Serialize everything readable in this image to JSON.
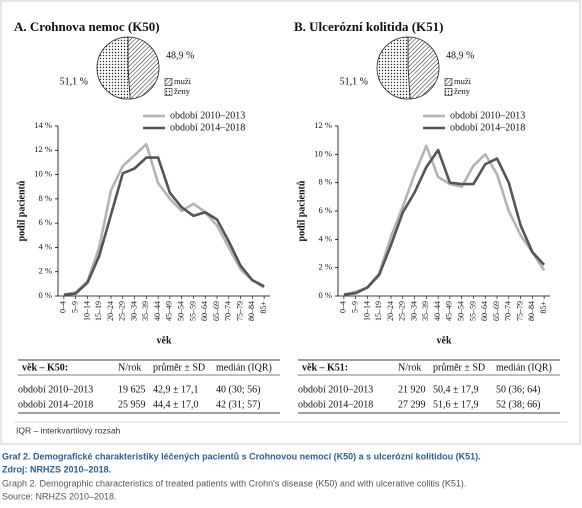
{
  "chart_data": [
    {
      "type": "pie",
      "title": "A. Crohnova nemoc (K50)",
      "categories": [
        "muži",
        "ženy"
      ],
      "values": [
        48.9,
        51.1
      ],
      "value_labels": [
        "48,9 %",
        "51,1 %"
      ],
      "fills": [
        "hatch",
        "dots"
      ]
    },
    {
      "type": "line",
      "categories": [
        "0–4",
        "5–9",
        "10–14",
        "15–19",
        "20–24",
        "25–29",
        "30–34",
        "35–39",
        "40–44",
        "45–49",
        "50–54",
        "55–59",
        "60–64",
        "65–69",
        "70–74",
        "75–79",
        "80–84",
        "85+"
      ],
      "series": [
        {
          "name": "období 2010–2013",
          "color": "#b3b3b3",
          "values": [
            0.1,
            0.3,
            1.2,
            4.0,
            8.7,
            10.7,
            11.6,
            12.5,
            9.3,
            8.0,
            7.0,
            7.6,
            6.9,
            5.8,
            4.0,
            2.2,
            1.3,
            0.7
          ]
        },
        {
          "name": "období 2014–2018",
          "color": "#555555",
          "values": [
            0.1,
            0.2,
            1.1,
            3.3,
            6.7,
            10.1,
            10.5,
            11.4,
            11.4,
            8.5,
            7.3,
            6.6,
            6.9,
            6.3,
            4.5,
            2.5,
            1.3,
            0.8
          ]
        }
      ],
      "ylim": [
        0,
        14
      ],
      "yticks": [
        {
          "value": 0,
          "label": "0 %"
        },
        {
          "value": 2,
          "label": "2 %"
        },
        {
          "value": 4,
          "label": "4 %"
        },
        {
          "value": 6,
          "label": "6 %"
        },
        {
          "value": 8,
          "label": "8 %"
        },
        {
          "value": 10,
          "label": "10 %"
        },
        {
          "value": 12,
          "label": "12 %"
        },
        {
          "value": 14,
          "label": "14 %"
        }
      ],
      "y_label": "podíl pacientů",
      "x_label": "věk"
    },
    {
      "type": "pie",
      "title": "B. Ulcerózní kolitida (K51)",
      "categories": [
        "muži",
        "ženy"
      ],
      "values": [
        48.9,
        51.1
      ],
      "value_labels": [
        "48,9 %",
        "51,1 %"
      ],
      "fills": [
        "hatch",
        "dots"
      ]
    },
    {
      "type": "line",
      "categories": [
        "0–4",
        "5–9",
        "10–14",
        "15–19",
        "20–24",
        "25–29",
        "30–34",
        "35–39",
        "40–44",
        "45–49",
        "50–54",
        "55–59",
        "60–64",
        "65–69",
        "70–74",
        "75–79",
        "80–84",
        "85+"
      ],
      "series": [
        {
          "name": "období 2010–2013",
          "color": "#b3b3b3",
          "values": [
            0.1,
            0.3,
            0.6,
            1.6,
            4.2,
            6.3,
            8.6,
            10.6,
            8.4,
            7.9,
            7.7,
            9.2,
            10.0,
            8.6,
            6.0,
            4.3,
            3.1,
            1.8
          ]
        },
        {
          "name": "období 2014–2018",
          "color": "#555555",
          "values": [
            0.1,
            0.2,
            0.6,
            1.5,
            3.6,
            5.9,
            7.3,
            9.1,
            10.3,
            8.0,
            7.9,
            7.9,
            9.3,
            9.7,
            8.0,
            5.0,
            3.1,
            2.2
          ]
        }
      ],
      "ylim": [
        0,
        12
      ],
      "yticks": [
        {
          "value": 0,
          "label": "0 %"
        },
        {
          "value": 2,
          "label": "2 %"
        },
        {
          "value": 4,
          "label": "4 %"
        },
        {
          "value": 6,
          "label": "6 %"
        },
        {
          "value": 8,
          "label": "8 %"
        },
        {
          "value": 10,
          "label": "10 %"
        },
        {
          "value": 12,
          "label": "12 %"
        }
      ],
      "y_label": "podíl pacientů",
      "x_label": "věk"
    }
  ],
  "tables": [
    {
      "header": [
        "věk – K50:",
        "N/rok",
        "průměr ± SD",
        "medián (IQR)"
      ],
      "rows": [
        [
          "období 2010–2013",
          "19 625",
          "42,9 ± 17,1",
          "40 (30; 56)"
        ],
        [
          "období 2014–2018",
          "25 959",
          "44,4 ± 17,0",
          "42 (31; 57)"
        ]
      ]
    },
    {
      "header": [
        "věk – K51:",
        "N/rok",
        "průměr ± SD",
        "medián (IQR)"
      ],
      "rows": [
        [
          "období 2010–2013",
          "21 920",
          "50,4 ± 17,9",
          "50 (36; 64)"
        ],
        [
          "období 2014–2018",
          "27 299",
          "51,6 ± 17,9",
          "52 (38; 66)"
        ]
      ]
    }
  ],
  "footnote": "IQR – interkvartilový rozsah",
  "caption": [
    "Graf 2. Demografické charakteristiky léčených pacientů s Crohnovou nemocí (K50) a s ulcerózní kolitidou (K51).",
    "Zdroj: NRHZS 2010–2018.",
    "Graph 2. Demographic characteristics of treated patients with Crohn's disease (K50) and with ulcerative colitis (K51).",
    "Source: NRHZS 2010–2018."
  ]
}
